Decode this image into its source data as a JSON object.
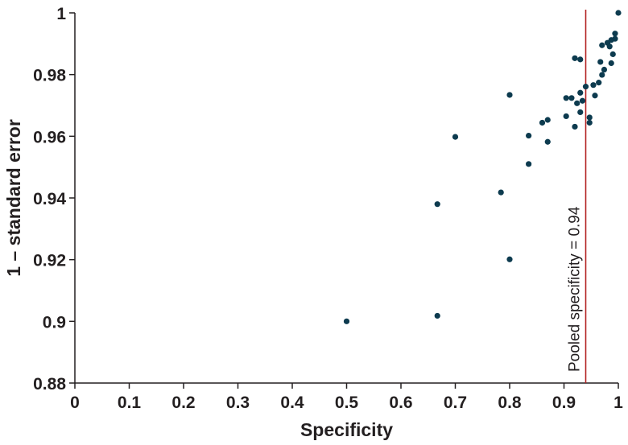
{
  "chart_data": {
    "type": "scatter",
    "title": "",
    "xlabel": "Specificity",
    "ylabel": "1 – standard error",
    "xlim": [
      0,
      1
    ],
    "ylim": [
      0.88,
      1
    ],
    "x_ticks": [
      0,
      0.1,
      0.2,
      0.3,
      0.4,
      0.5,
      0.6,
      0.7,
      0.8,
      0.9,
      1
    ],
    "x_tick_labels": [
      "0",
      "0.1",
      "0.2",
      "0.3",
      "0.4",
      "0.5",
      "0.6",
      "0.7",
      "0.8",
      "0.9",
      "1"
    ],
    "y_ticks": [
      0.88,
      0.9,
      0.92,
      0.94,
      0.96,
      0.98,
      1
    ],
    "y_tick_labels": [
      "0.88",
      "0.9",
      "0.92",
      "0.94",
      "0.96",
      "0.98",
      "1"
    ],
    "grid": false,
    "marker_color": "#0d3b4f",
    "reference_line": {
      "x": 0.94,
      "label": "Pooled specificity = 0.94",
      "color": "#b22222"
    },
    "points": [
      {
        "x": 0.5,
        "y": 0.9
      },
      {
        "x": 0.667,
        "y": 0.9018
      },
      {
        "x": 0.667,
        "y": 0.938
      },
      {
        "x": 0.7,
        "y": 0.9598
      },
      {
        "x": 0.784,
        "y": 0.9418
      },
      {
        "x": 0.8,
        "y": 0.9734
      },
      {
        "x": 0.8,
        "y": 0.9201
      },
      {
        "x": 0.835,
        "y": 0.9602
      },
      {
        "x": 0.835,
        "y": 0.951
      },
      {
        "x": 0.86,
        "y": 0.9644
      },
      {
        "x": 0.87,
        "y": 0.9653
      },
      {
        "x": 0.87,
        "y": 0.9582
      },
      {
        "x": 0.904,
        "y": 0.9724
      },
      {
        "x": 0.904,
        "y": 0.9665
      },
      {
        "x": 0.914,
        "y": 0.9724
      },
      {
        "x": 0.92,
        "y": 0.9853
      },
      {
        "x": 0.92,
        "y": 0.9631
      },
      {
        "x": 0.924,
        "y": 0.9707
      },
      {
        "x": 0.93,
        "y": 0.9849
      },
      {
        "x": 0.93,
        "y": 0.9741
      },
      {
        "x": 0.93,
        "y": 0.9678
      },
      {
        "x": 0.934,
        "y": 0.9715
      },
      {
        "x": 0.94,
        "y": 0.9761
      },
      {
        "x": 0.947,
        "y": 0.9661
      },
      {
        "x": 0.947,
        "y": 0.9644
      },
      {
        "x": 0.954,
        "y": 0.9766
      },
      {
        "x": 0.957,
        "y": 0.9732
      },
      {
        "x": 0.964,
        "y": 0.9774
      },
      {
        "x": 0.967,
        "y": 0.9841
      },
      {
        "x": 0.97,
        "y": 0.9895
      },
      {
        "x": 0.97,
        "y": 0.9799
      },
      {
        "x": 0.974,
        "y": 0.9816
      },
      {
        "x": 0.98,
        "y": 0.9903
      },
      {
        "x": 0.984,
        "y": 0.9891
      },
      {
        "x": 0.987,
        "y": 0.9912
      },
      {
        "x": 0.987,
        "y": 0.9837
      },
      {
        "x": 0.99,
        "y": 0.9866
      },
      {
        "x": 0.994,
        "y": 0.9933
      },
      {
        "x": 0.994,
        "y": 0.9916
      },
      {
        "x": 1.0,
        "y": 1.0
      }
    ]
  }
}
